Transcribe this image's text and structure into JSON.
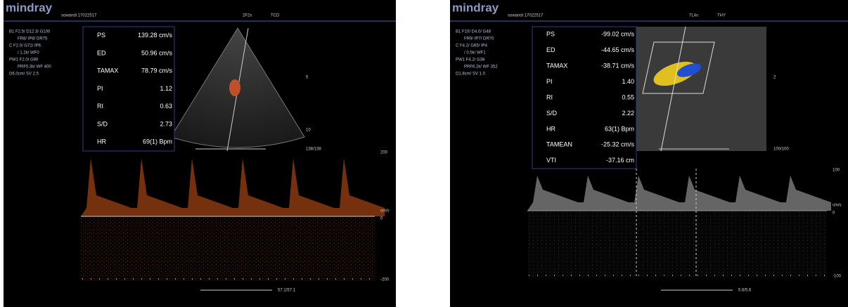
{
  "panels": [
    {
      "brand": "mindray",
      "patient": "sowandi 17022517",
      "frame_rate": "2F2s",
      "preset": "TCD",
      "settings": [
        "B1  F2.5/ D12.3/ G100",
        "FR8/  IP8/  DR75",
        "C  F2.0/  G72/  IP6",
        "/  1.2k/  WF0",
        "PW1  F2.0/  G90",
        "PRF5.3k/  WF 400",
        "D6.0cm/  SV 2.5"
      ],
      "measurements": [
        {
          "label": "PS",
          "value": "139.28 cm/s"
        },
        {
          "label": "ED",
          "value": "50.96 cm/s"
        },
        {
          "label": "TAMAX",
          "value": "78.79 cm/s"
        },
        {
          "label": "PI",
          "value": "1.12"
        },
        {
          "label": "RI",
          "value": "0.63"
        },
        {
          "label": "S/D",
          "value": "2.73"
        },
        {
          "label": "HR",
          "value": "69(1) Bpm"
        }
      ],
      "depth_scale": [
        "5",
        "10"
      ],
      "depth_bar": "138/138",
      "velocity_scale": [
        "200",
        "cm/s",
        "0",
        "-200"
      ],
      "bottom_bar": "57.1/57.1"
    },
    {
      "brand": "mindray",
      "patient": "sowandi 17022517",
      "frame_rate": "7L4s",
      "preset": "THY",
      "settings": [
        "B1  F10/  D4.0/  G48",
        "FR9/  IP7/  DR70",
        "C  F4.2/  G65/  IP4",
        "/  0.5k/  WF1",
        "PW1  F4.2/  G38",
        "PRF6.2k/  WF 352",
        "D1.8cm/  SV 1.0"
      ],
      "measurements": [
        {
          "label": "PS",
          "value": "-99.02 cm/s"
        },
        {
          "label": "ED",
          "value": "-44.65 cm/s"
        },
        {
          "label": "TAMAX",
          "value": "-38.71 cm/s"
        },
        {
          "label": "PI",
          "value": "1.40"
        },
        {
          "label": "RI",
          "value": "0.55"
        },
        {
          "label": "S/D",
          "value": "2.22"
        },
        {
          "label": "HR",
          "value": "63(1) Bpm"
        },
        {
          "label": "TAMEAN",
          "value": "-25.32 cm/s"
        },
        {
          "label": "VTI",
          "value": "-37.16 cm"
        }
      ],
      "depth_scale": [
        "2"
      ],
      "depth_bar": "100/100",
      "velocity_scale": [
        "100",
        "cm/s",
        "0",
        "-100"
      ],
      "bottom_bar": "5.6/5.6"
    }
  ]
}
